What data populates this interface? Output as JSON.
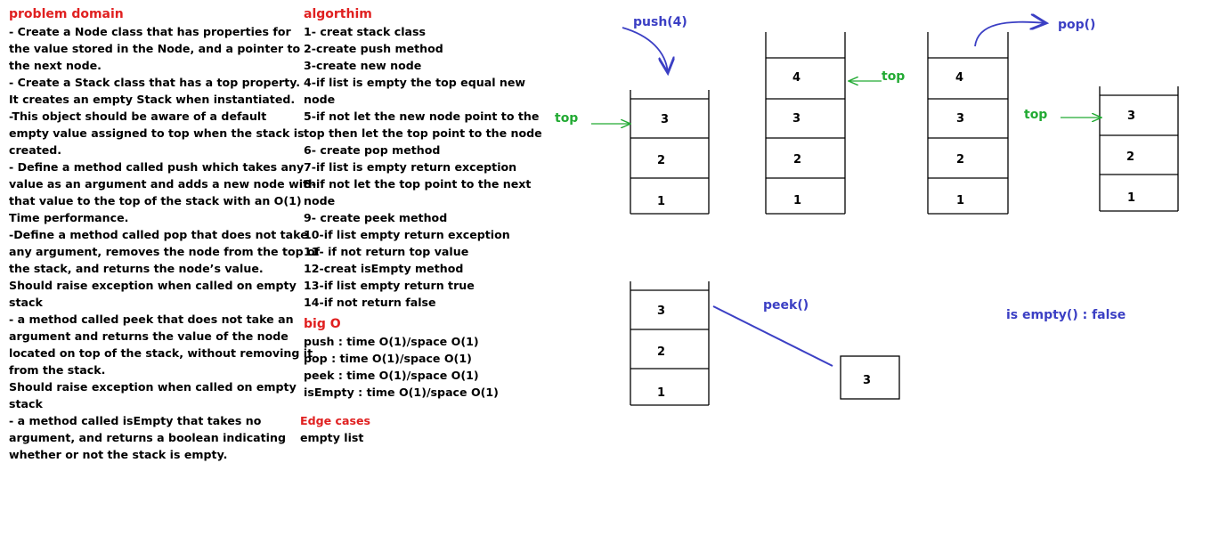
{
  "colors": {
    "heading": "#e02020",
    "top_label": "#22aa33",
    "method": "#3b3fc4",
    "stroke": "#000000"
  },
  "problem_domain": {
    "heading": "problem domain",
    "lines": [
      "- Create a Node class that has properties for",
      "the value stored in the Node, and a pointer to",
      "the next node.",
      "- Create a Stack class that has a top property.",
      "It creates an empty Stack when instantiated.",
      "-This object should be aware of a default",
      "empty value assigned to top when the stack is",
      "created.",
      "- Define a method called push which takes any",
      "value as an argument and adds a new node with",
      "that value to the top of the stack with an O(1)",
      "Time performance.",
      "-Define a method called pop that does not take",
      "any argument, removes the node from the top of",
      "the stack, and returns the node’s value.",
      "Should raise exception when called on empty",
      "stack",
      "- a method called peek that does not take an",
      "argument and returns the value of the node",
      "located on top of the stack, without removing it",
      "from the stack.",
      "Should raise exception when called on empty",
      "stack",
      "- a method called isEmpty that takes no",
      "argument, and returns a boolean indicating",
      "whether or not the stack is empty."
    ]
  },
  "algorithm": {
    "heading": "algorthim",
    "lines": [
      "1- creat stack class",
      "2-create push method",
      "3-create new node",
      "4-if list is empty the top equal new",
      "node",
      "5-if not let the new node point to the",
      "top then let the top point to the node",
      "6- create pop method",
      "7-if list is empty return exception",
      "8-if not let the top point to the next",
      "node",
      "9- create peek method",
      "10-if list empty return exception",
      "11- if not return top value",
      "12-creat isEmpty method",
      "13-if list empty return true",
      "14-if not return false"
    ]
  },
  "big_o": {
    "heading": "big O",
    "lines": [
      "push : time O(1)/space O(1)",
      "pop : time O(1)/space O(1)",
      "peek : time O(1)/space O(1)",
      "isEmpty : time O(1)/space O(1)"
    ]
  },
  "edge_cases": {
    "heading": "Edge cases",
    "lines": [
      "empty list"
    ]
  },
  "diagram": {
    "push_label": "push(4)",
    "pop_label": "pop()",
    "peek_label": "peek()",
    "is_empty_label": "is empty() : false",
    "top_label": "top",
    "push_stack": [
      "3",
      "2",
      "1"
    ],
    "after_push_stack": [
      "4",
      "3",
      "2",
      "1"
    ],
    "before_pop_stack": [
      "4",
      "3",
      "2",
      "1"
    ],
    "after_pop_stack": [
      "3",
      "2",
      "1"
    ],
    "peek_stack": [
      "3",
      "2",
      "1"
    ],
    "peek_result": "3"
  }
}
